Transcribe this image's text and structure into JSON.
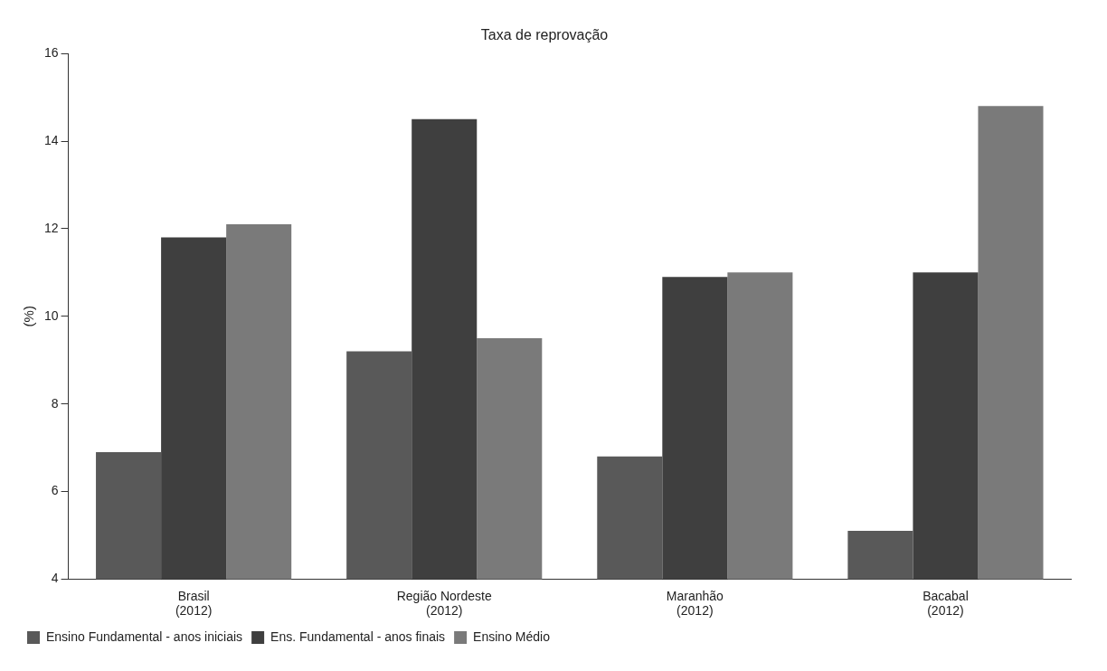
{
  "chart_data": {
    "type": "bar",
    "title": "Taxa de reprovação",
    "ylabel": "(%)",
    "categories": [
      "Brasil\n(2012)",
      "Região Nordeste\n(2012)",
      "Maranhão\n(2012)",
      "Bacabal\n(2012)"
    ],
    "series": [
      {
        "name": "Ensino Fundamental - anos iniciais",
        "color": "#595959",
        "values": [
          6.9,
          9.2,
          6.8,
          5.1
        ]
      },
      {
        "name": "Ens. Fundamental - anos finais",
        "color": "#3f3f3f",
        "values": [
          11.8,
          14.5,
          10.9,
          11.0
        ]
      },
      {
        "name": "Ensino Médio",
        "color": "#7a7a7a",
        "values": [
          12.1,
          9.5,
          11.0,
          14.8
        ]
      }
    ],
    "ylim": [
      4,
      16
    ],
    "yticks": [
      4,
      6,
      8,
      10,
      12,
      14,
      16
    ],
    "grid": false,
    "legend": "bottom left"
  }
}
